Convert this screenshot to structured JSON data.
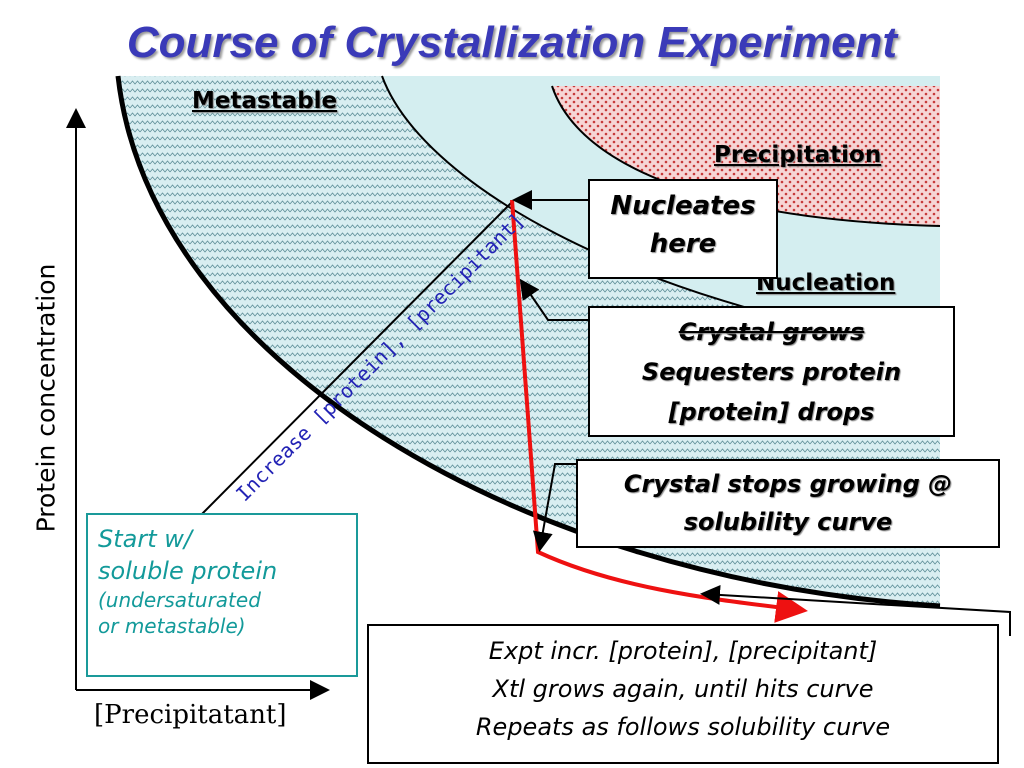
{
  "title": "Course of Crystallization Experiment",
  "regions": {
    "metastable": "Metastable",
    "precipitation": "Precipitation",
    "nucleation": "Nucleation"
  },
  "axes": {
    "y_label": "Protein concentration",
    "x_label": "[Precipitatant]"
  },
  "diagonal_label": "Increase [protein], [precipitant]",
  "boxes": {
    "nucleates": [
      "Nucleates",
      "here"
    ],
    "crystal_grows": [
      "Crystal grows",
      "Sequesters protein",
      "[protein] drops"
    ],
    "crystal_stops": [
      "Crystal stops growing @",
      "solubility curve"
    ],
    "start": {
      "line1": "Start w/",
      "line2": "soluble protein",
      "line3": "(undersaturated",
      "line4": "or metastable)"
    },
    "expt": [
      "Expt incr. [protein], [precipitant]",
      "Xtl grows again, until hits curve",
      "Repeats as follows solubility curve"
    ]
  },
  "colors": {
    "title": "#3a3ab8",
    "metastable_fill": "#d8eef0",
    "precipitation_fill": "#f2c8c8",
    "path": "#ee1111",
    "start_box": "#139a9a",
    "diagonal_label": "#2323b5"
  }
}
